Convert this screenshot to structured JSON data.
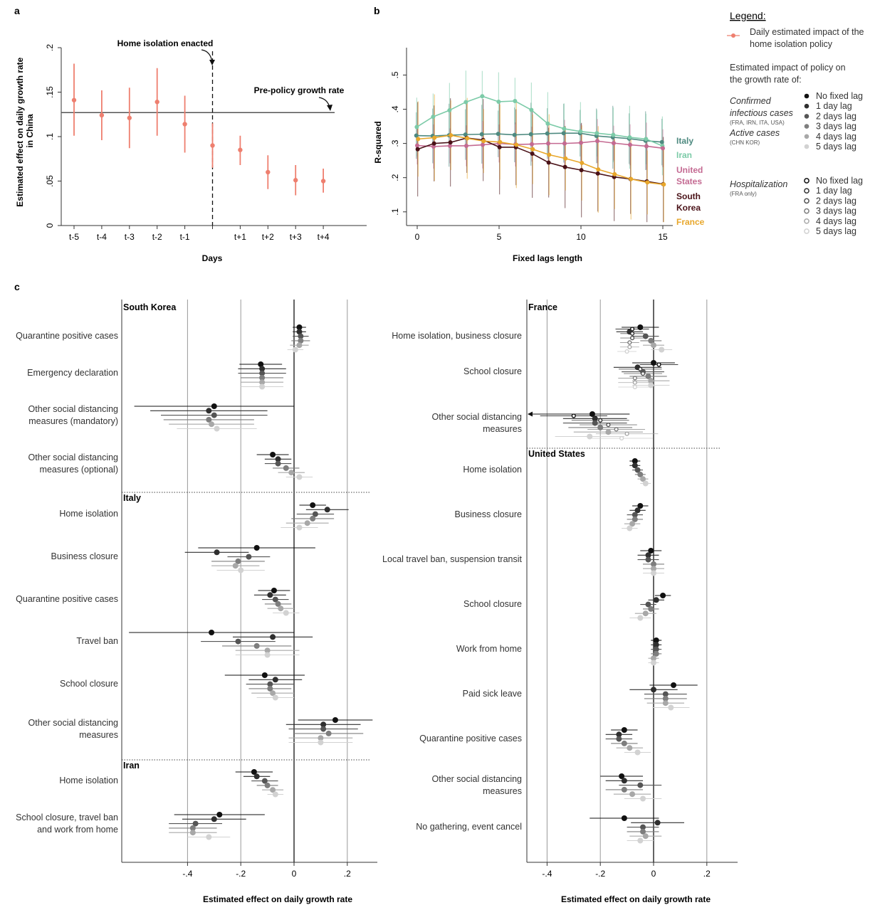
{
  "colors": {
    "salmon": "#ee7f6f",
    "italy": "#4e8a80",
    "iran": "#7ccba8",
    "usa": "#c46a92",
    "korea": "#4a1218",
    "france": "#e8a72b",
    "lag_shades": [
      "#111111",
      "#2f2f2f",
      "#555555",
      "#7e7e7e",
      "#a8a8a8",
      "#d2d2d2"
    ]
  },
  "panel_letters": {
    "a": "a",
    "b": "b",
    "c": "c"
  },
  "legend": {
    "title": "Legend:",
    "salmon_label_1": "Daily estimated impact of the",
    "salmon_label_2": "home isolation policy",
    "impact_1": "Estimated impact of policy on",
    "impact_2": "the growth rate of:",
    "confirmed_1": "Confirmed",
    "confirmed_2": "infectious cases",
    "confirmed_note": "(FRA, IRN, ITA, USA)",
    "active": "Active cases",
    "active_note": "(CHN KOR)",
    "hospitalization": "Hospitalization",
    "hospitalization_note": "(FRA only)",
    "lags": [
      "No fixed lag",
      "1 day lag",
      "2 days lag",
      "3 days lag",
      "4 days lag",
      "5 days lag"
    ]
  },
  "chart_data": [
    {
      "panel": "a",
      "type": "scatter",
      "ylabel": "Estimated effect on daily growth rate in China",
      "xlabel": "Days",
      "categories": [
        "t-5",
        "t-4",
        "t-3",
        "t-2",
        "t-1",
        "t+1",
        "t+2",
        "t+3",
        "t+4"
      ],
      "x": [
        -5,
        -4,
        -3,
        -2,
        -1,
        1,
        2,
        3,
        4
      ],
      "values": [
        0.141,
        0.124,
        0.121,
        0.139,
        0.114,
        0.085,
        0.06,
        0.051,
        0.05
      ],
      "ci_low": [
        0.101,
        0.096,
        0.087,
        0.101,
        0.082,
        0.068,
        0.041,
        0.034,
        0.037
      ],
      "ci_high": [
        0.182,
        0.152,
        0.155,
        0.177,
        0.146,
        0.101,
        0.079,
        0.068,
        0.064
      ],
      "policy_day": {
        "x": 0,
        "value": 0.09,
        "ci_low": 0.065,
        "ci_high": 0.115
      },
      "ylim": [
        0,
        0.2
      ],
      "yticks": [
        0,
        0.05,
        0.1,
        0.15,
        0.2
      ],
      "ytick_labels": [
        "0",
        ".05",
        ".1",
        ".15",
        ".2"
      ],
      "pre_policy_growth_rate": 0.127,
      "annotations": [
        "Home isolation enacted",
        "Pre-policy growth rate"
      ],
      "grid": false
    },
    {
      "panel": "b",
      "type": "line",
      "ylabel": "R-squared",
      "xlabel": "Fixed lags length",
      "xlim": [
        0,
        15
      ],
      "xticks": [
        0,
        5,
        10,
        15
      ],
      "ylim": [
        0.06,
        0.58
      ],
      "yticks": [
        0.1,
        0.2,
        0.3,
        0.4,
        0.5
      ],
      "ytick_labels": [
        ".1",
        ".2",
        ".3",
        ".4",
        ".5"
      ],
      "x": [
        0,
        1,
        2,
        3,
        4,
        5,
        6,
        7,
        8,
        9,
        10,
        11,
        12,
        13,
        14,
        15
      ],
      "series": [
        {
          "name": "Italy",
          "colorKey": "italy",
          "values": [
            0.323,
            0.322,
            0.324,
            0.326,
            0.327,
            0.328,
            0.325,
            0.327,
            0.329,
            0.33,
            0.33,
            0.322,
            0.318,
            0.314,
            0.308,
            0.304
          ],
          "ci": 0.08
        },
        {
          "name": "Iran",
          "colorKey": "iran",
          "values": [
            0.348,
            0.378,
            0.397,
            0.421,
            0.438,
            0.422,
            0.424,
            0.398,
            0.358,
            0.343,
            0.335,
            0.33,
            0.325,
            0.318,
            0.313,
            0.293
          ],
          "ci": 0.08
        },
        {
          "name": "United States",
          "colorKey": "usa",
          "values": [
            0.294,
            0.291,
            0.293,
            0.293,
            0.296,
            0.3,
            0.297,
            0.298,
            0.3,
            0.3,
            0.302,
            0.307,
            0.301,
            0.296,
            0.292,
            0.286
          ],
          "ci": 0.06
        },
        {
          "name": "South Korea",
          "colorKey": "korea",
          "values": [
            0.283,
            0.3,
            0.303,
            0.316,
            0.31,
            0.289,
            0.289,
            0.27,
            0.244,
            0.231,
            0.222,
            0.212,
            0.202,
            0.196,
            0.189,
            0.181
          ],
          "ci": 0.12
        },
        {
          "name": "France",
          "colorKey": "france",
          "values": [
            0.313,
            0.317,
            0.324,
            0.315,
            0.307,
            0.304,
            0.296,
            0.283,
            0.267,
            0.256,
            0.243,
            0.224,
            0.21,
            0.196,
            0.186,
            0.18
          ],
          "ci": 0.11
        }
      ],
      "legend_labels": [
        "Italy",
        "Iran",
        "United States",
        "South Korea",
        "France"
      ],
      "grid": false
    },
    {
      "panel": "c-left",
      "type": "scatter",
      "xlabel": "Estimated effect on daily growth rate",
      "xlim": [
        -0.64,
        0.31
      ],
      "xticks": [
        -0.4,
        -0.2,
        0,
        0.2
      ],
      "xtick_labels": [
        "-.4",
        "-.2",
        "0",
        ".2"
      ],
      "grid": true,
      "groups": [
        {
          "country": "South Korea",
          "rows": [
            {
              "label": [
                "Quarantine positive cases"
              ],
              "est": [
                0.02,
                0.02,
                0.025,
                0.025,
                0.02,
                0.005
              ],
              "ci": [
                0.025,
                0.025,
                0.03,
                0.035,
                0.035,
                0.03
              ]
            },
            {
              "label": [
                "Emergency declaration"
              ],
              "est": [
                -0.125,
                -0.12,
                -0.12,
                -0.12,
                -0.12,
                -0.12
              ],
              "ci": [
                0.08,
                0.09,
                0.09,
                0.08,
                0.08,
                0.08
              ]
            },
            {
              "label": [
                "Other social distancing",
                "measures (mandatory)"
              ],
              "est": [
                -0.3,
                -0.32,
                -0.3,
                -0.32,
                -0.31,
                -0.29
              ],
              "ci": [
                0.3,
                0.22,
                0.2,
                0.17,
                0.16,
                0.15
              ]
            },
            {
              "label": [
                "Other social distancing",
                "measures (optional)"
              ],
              "est": [
                -0.08,
                -0.06,
                -0.06,
                -0.03,
                -0.01,
                0.02
              ],
              "ci": [
                0.06,
                0.05,
                0.05,
                0.05,
                0.05,
                0.05
              ]
            }
          ]
        },
        {
          "country": "Italy",
          "rows": [
            {
              "label": [
                "Home isolation"
              ],
              "est": [
                0.07,
                0.125,
                0.08,
                0.07,
                0.05,
                0.02
              ],
              "ci": [
                0.05,
                0.08,
                0.07,
                0.08,
                0.08,
                0.07
              ]
            },
            {
              "label": [
                "Business closure"
              ],
              "est": [
                -0.14,
                -0.29,
                -0.17,
                -0.21,
                -0.22,
                -0.2
              ],
              "ci": [
                0.22,
                0.12,
                0.08,
                0.1,
                0.09,
                0.09
              ]
            },
            {
              "label": [
                "Quarantine positive cases"
              ],
              "est": [
                -0.075,
                -0.09,
                -0.07,
                -0.06,
                -0.05,
                -0.03
              ],
              "ci": [
                0.06,
                0.06,
                0.05,
                0.05,
                0.05,
                0.05
              ]
            },
            {
              "label": [
                "Travel ban"
              ],
              "est": [
                -0.31,
                -0.08,
                -0.21,
                -0.14,
                -0.1,
                -0.1
              ],
              "ci": [
                0.31,
                0.15,
                0.14,
                0.13,
                0.12,
                0.12
              ]
            },
            {
              "label": [
                "School closure"
              ],
              "est": [
                -0.11,
                -0.07,
                -0.09,
                -0.09,
                -0.08,
                -0.07
              ],
              "ci": [
                0.15,
                0.1,
                0.09,
                0.08,
                0.08,
                0.07
              ]
            },
            {
              "label": [
                "Other social distancing",
                "measures"
              ],
              "est": [
                0.155,
                0.11,
                0.11,
                0.13,
                0.1,
                0.1
              ],
              "ci": [
                0.14,
                0.14,
                0.13,
                0.13,
                0.12,
                0.12
              ]
            }
          ]
        },
        {
          "country": "Iran",
          "rows": [
            {
              "label": [
                "Home isolation"
              ],
              "est": [
                -0.15,
                -0.14,
                -0.11,
                -0.1,
                -0.08,
                -0.07
              ],
              "ci": [
                0.07,
                0.05,
                0.05,
                0.04,
                0.04,
                0.03
              ]
            },
            {
              "label": [
                "School closure, travel ban",
                "and work from home"
              ],
              "est": [
                -0.28,
                -0.3,
                -0.37,
                -0.38,
                -0.38,
                -0.32
              ],
              "ci": [
                0.17,
                0.12,
                0.1,
                0.09,
                0.09,
                0.08
              ]
            }
          ]
        }
      ]
    },
    {
      "panel": "c-right",
      "type": "scatter",
      "xlabel": "Estimated effect on daily growth rate",
      "xlim": [
        -0.475,
        0.31
      ],
      "xticks": [
        -0.4,
        -0.2,
        0,
        0.2
      ],
      "xtick_labels": [
        "-.4",
        "-.2",
        "0",
        ".2"
      ],
      "grid": true,
      "groups": [
        {
          "country": "France",
          "rows": [
            {
              "label": [
                "Home isolation, business closure"
              ],
              "est": [
                -0.05,
                -0.09,
                -0.03,
                -0.01,
                0.0,
                0.03
              ],
              "ci": [
                0.07,
                0.05,
                0.05,
                0.04,
                0.04,
                0.04
              ],
              "hosp": [
                -0.08,
                -0.08,
                -0.08,
                -0.09,
                -0.09,
                -0.1
              ]
            },
            {
              "label": [
                "School closure"
              ],
              "est": [
                0.0,
                -0.06,
                -0.04,
                -0.02,
                -0.01,
                -0.01
              ],
              "ci": [
                0.08,
                0.09,
                0.08,
                0.07,
                0.07,
                0.07
              ],
              "hosp": [
                0.02,
                -0.05,
                -0.04,
                -0.07,
                -0.07,
                -0.07
              ]
            },
            {
              "label": [
                "Other social distancing",
                "measures"
              ],
              "est": [
                -0.23,
                -0.22,
                -0.22,
                -0.2,
                -0.17,
                -0.24
              ],
              "ci": [
                0.14,
                0.12,
                0.12,
                0.12,
                0.13,
                0.13
              ],
              "hosp": [
                -0.3,
                -0.2,
                -0.17,
                -0.14,
                -0.1,
                -0.12
              ],
              "arrow_left": true
            }
          ]
        },
        {
          "country": "United States",
          "rows": [
            {
              "label": [
                "Home isolation"
              ],
              "est": [
                -0.07,
                -0.07,
                -0.06,
                -0.05,
                -0.04,
                -0.03
              ],
              "ci": [
                0.02,
                0.02,
                0.02,
                0.02,
                0.02,
                0.02
              ]
            },
            {
              "label": [
                "Business closure"
              ],
              "est": [
                -0.05,
                -0.06,
                -0.07,
                -0.07,
                -0.08,
                -0.09
              ],
              "ci": [
                0.03,
                0.03,
                0.03,
                0.03,
                0.03,
                0.03
              ]
            },
            {
              "label": [
                "Local travel ban, suspension transit"
              ],
              "est": [
                -0.01,
                -0.02,
                -0.02,
                0.0,
                0.0,
                0.0
              ],
              "ci": [
                0.04,
                0.04,
                0.04,
                0.04,
                0.04,
                0.04
              ]
            },
            {
              "label": [
                "School closure"
              ],
              "est": [
                0.035,
                0.01,
                -0.02,
                -0.01,
                -0.03,
                -0.05
              ],
              "ci": [
                0.03,
                0.03,
                0.03,
                0.03,
                0.04,
                0.04
              ]
            },
            {
              "label": [
                "Work from home"
              ],
              "est": [
                0.01,
                0.01,
                0.01,
                0.01,
                0.0,
                0.0
              ],
              "ci": [
                0.02,
                0.02,
                0.02,
                0.02,
                0.02,
                0.02
              ]
            },
            {
              "label": [
                "Paid sick leave"
              ],
              "est": [
                0.075,
                0.0,
                0.045,
                0.045,
                0.045,
                0.065
              ],
              "ci": [
                0.09,
                0.09,
                0.08,
                0.08,
                0.07,
                0.07
              ]
            },
            {
              "label": [
                "Quarantine positive cases"
              ],
              "est": [
                -0.11,
                -0.13,
                -0.13,
                -0.11,
                -0.09,
                -0.06
              ],
              "ci": [
                0.05,
                0.05,
                0.05,
                0.05,
                0.05,
                0.05
              ]
            },
            {
              "label": [
                "Other social distancing",
                "measures"
              ],
              "est": [
                -0.12,
                -0.11,
                -0.05,
                -0.11,
                -0.08,
                -0.04
              ],
              "ci": [
                0.08,
                0.07,
                0.08,
                0.07,
                0.07,
                0.07
              ]
            },
            {
              "label": [
                "No gathering, event cancel"
              ],
              "est": [
                -0.11,
                0.015,
                -0.04,
                -0.04,
                -0.03,
                -0.05
              ],
              "ci": [
                0.13,
                0.1,
                0.06,
                0.06,
                0.06,
                0.05
              ]
            }
          ]
        }
      ]
    }
  ]
}
